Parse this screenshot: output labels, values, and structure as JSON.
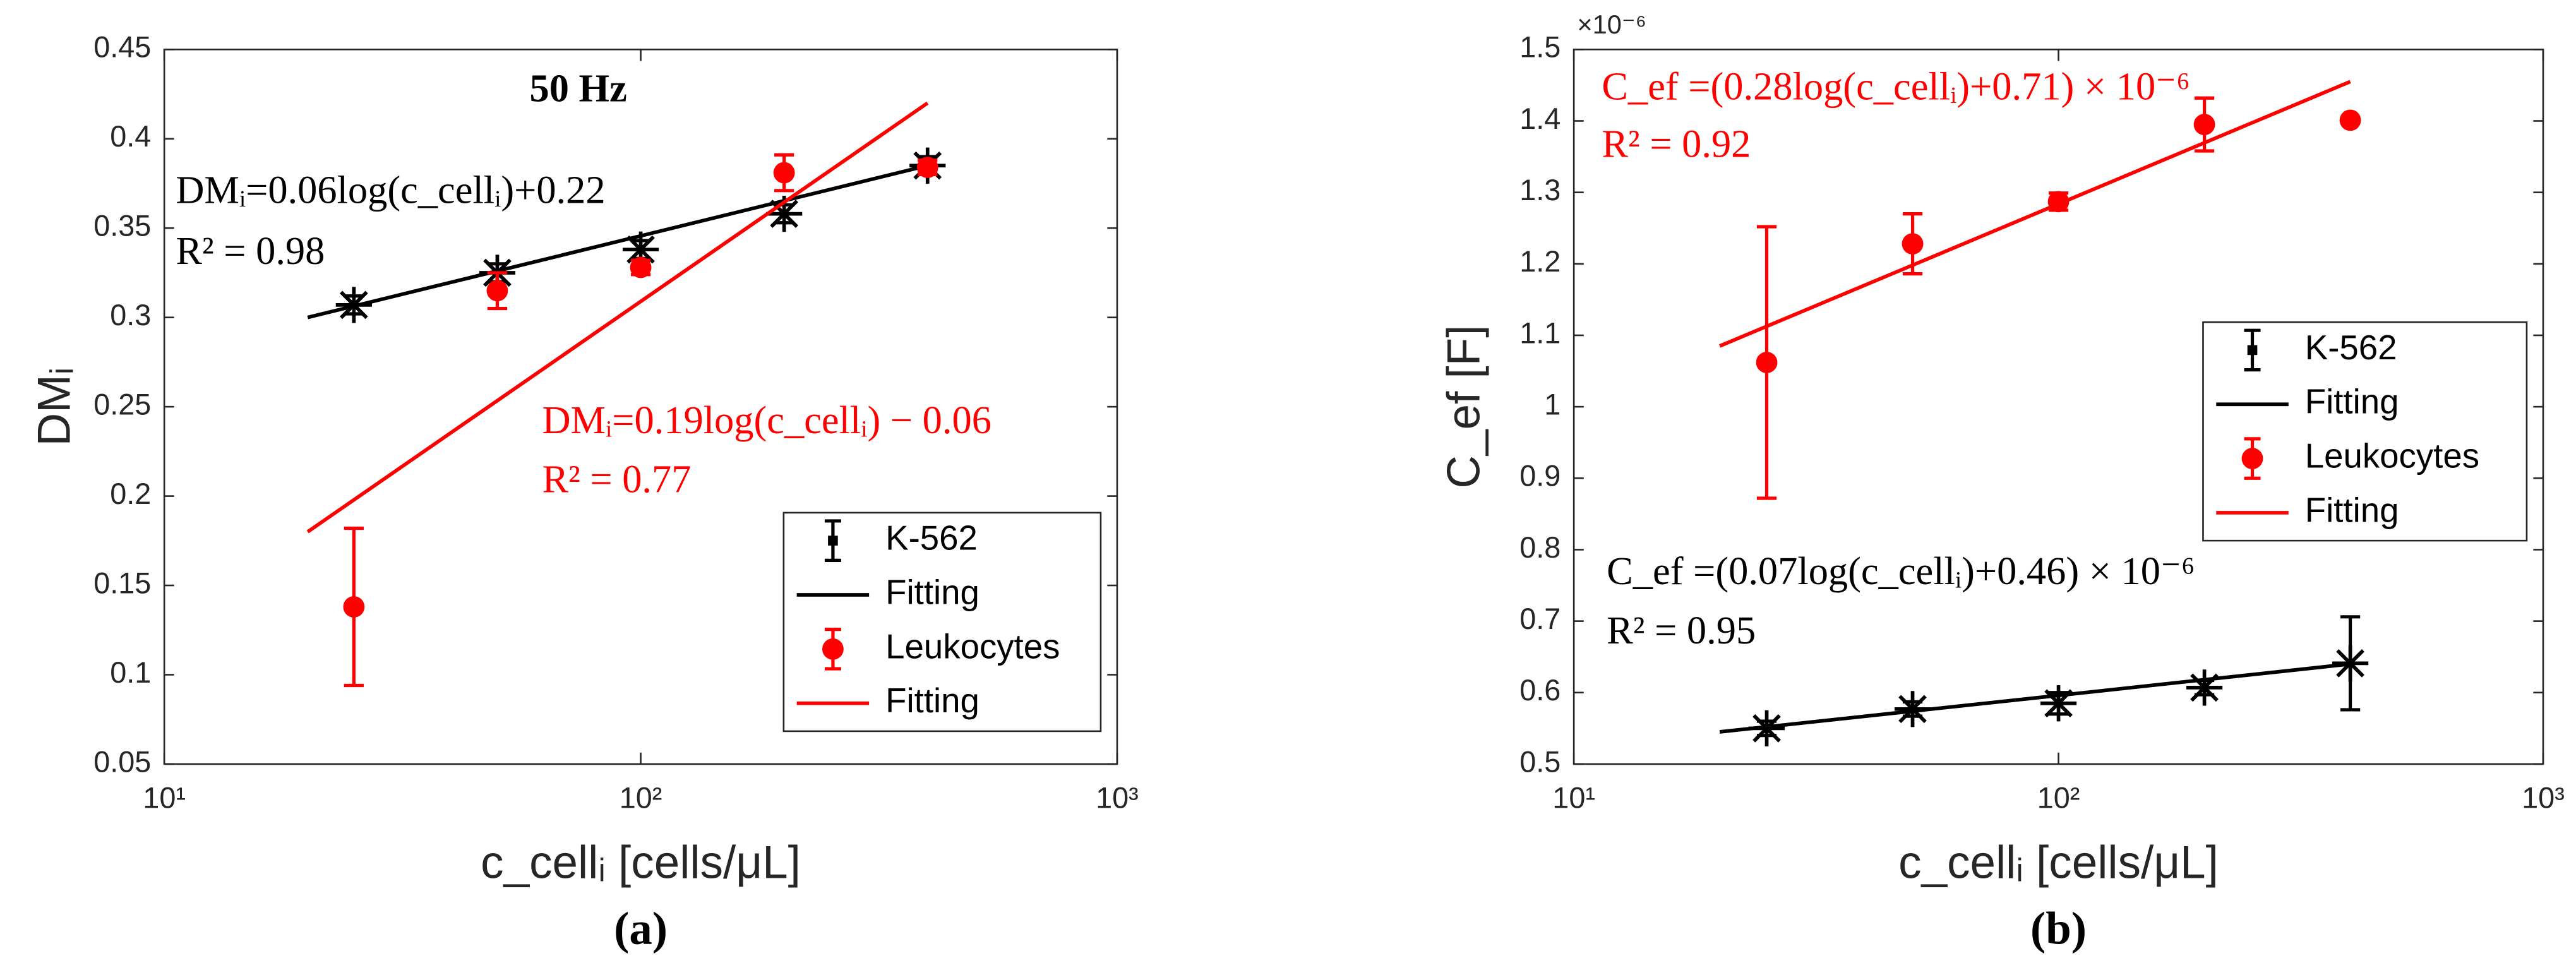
{
  "chart_data": [
    {
      "type": "scatter",
      "title": "50 Hz",
      "xlabel": "c_cellᵢ [cells/μL]",
      "ylabel": "DMᵢ",
      "caption": "(a)",
      "xscale": "log",
      "xlim": [
        10,
        1000
      ],
      "xticks": [
        {
          "value": 10,
          "label": "10¹"
        },
        {
          "value": 100,
          "label": "10²"
        },
        {
          "value": 1000,
          "label": "10³"
        }
      ],
      "ylim": [
        0.05,
        0.45
      ],
      "yticks": [
        0.05,
        0.1,
        0.15,
        0.2,
        0.25,
        0.3,
        0.35,
        0.4,
        0.45
      ],
      "legend_loc": "lower right",
      "series": [
        {
          "name": "K-562",
          "color": "#000000",
          "marker": "star",
          "x": [
            25,
            50,
            100,
            200,
            400
          ],
          "values": [
            0.307,
            0.325,
            0.338,
            0.358,
            0.385
          ],
          "errors": [
            0.005,
            0.005,
            0.005,
            0.005,
            0.005
          ]
        },
        {
          "name": "Fitting",
          "color": "#000000",
          "marker": "line",
          "x": [
            20,
            400
          ],
          "values": [
            0.3,
            0.385
          ]
        },
        {
          "name": "Leukocytes",
          "color": "#ff0000",
          "marker": "circle",
          "x": [
            25,
            50,
            100,
            200,
            400
          ],
          "values": [
            0.138,
            0.315,
            0.328,
            0.381,
            0.384
          ],
          "errors": [
            0.044,
            0.01,
            0.004,
            0.01,
            0.004
          ]
        },
        {
          "name": "Fitting",
          "color": "#ff0000",
          "marker": "line",
          "x": [
            20,
            400
          ],
          "values": [
            0.18,
            0.42
          ]
        }
      ],
      "annotations": [
        {
          "text": "DMᵢ=0.06log(c_cellᵢ)+0.22",
          "color": "#000000"
        },
        {
          "text": "R² = 0.98",
          "color": "#000000"
        },
        {
          "text": "DMᵢ=0.19log(c_cellᵢ) − 0.06",
          "color": "#ff0000"
        },
        {
          "text": "R² = 0.77",
          "color": "#ff0000"
        }
      ]
    },
    {
      "type": "scatter",
      "xlabel": "c_cellᵢ [cells/μL]",
      "ylabel": "C_ef [F]",
      "y_multiplier": "×10⁻⁶",
      "caption": "(b)",
      "xscale": "log",
      "xlim": [
        10,
        1000
      ],
      "xticks": [
        {
          "value": 10,
          "label": "10¹"
        },
        {
          "value": 100,
          "label": "10²"
        },
        {
          "value": 1000,
          "label": "10³"
        }
      ],
      "ylim": [
        0.5,
        1.5
      ],
      "yticks": [
        0.5,
        0.6,
        0.7,
        0.8,
        0.9,
        1,
        1.1,
        1.2,
        1.3,
        1.4,
        1.5
      ],
      "legend_loc": "center right",
      "series": [
        {
          "name": "K-562",
          "color": "#000000",
          "marker": "star",
          "x": [
            25,
            50,
            100,
            200,
            400
          ],
          "values": [
            0.55,
            0.577,
            0.585,
            0.607,
            0.641
          ],
          "errors": [
            0.01,
            0.01,
            0.015,
            0.01,
            0.065
          ]
        },
        {
          "name": "Fitting",
          "color": "#000000",
          "marker": "line",
          "x": [
            20,
            400
          ],
          "values": [
            0.545,
            0.64
          ]
        },
        {
          "name": "Leukocytes",
          "color": "#ff0000",
          "marker": "circle",
          "x": [
            25,
            50,
            100,
            200,
            400
          ],
          "values": [
            1.062,
            1.228,
            1.287,
            1.395,
            1.401
          ],
          "errors": [
            0.19,
            0.042,
            0.012,
            0.037,
            0
          ]
        },
        {
          "name": "Fitting",
          "color": "#ff0000",
          "marker": "line",
          "x": [
            20,
            400
          ],
          "values": [
            1.085,
            1.455
          ]
        }
      ],
      "annotations": [
        {
          "text": "C_ef =(0.28log(c_cellᵢ)+0.71) × 10⁻⁶",
          "color": "#ff0000"
        },
        {
          "text": "R² = 0.92",
          "color": "#ff0000"
        },
        {
          "text": "C_ef =(0.07log(c_cellᵢ)+0.46) × 10⁻⁶",
          "color": "#000000"
        },
        {
          "text": "R² = 0.95",
          "color": "#000000"
        }
      ]
    }
  ]
}
